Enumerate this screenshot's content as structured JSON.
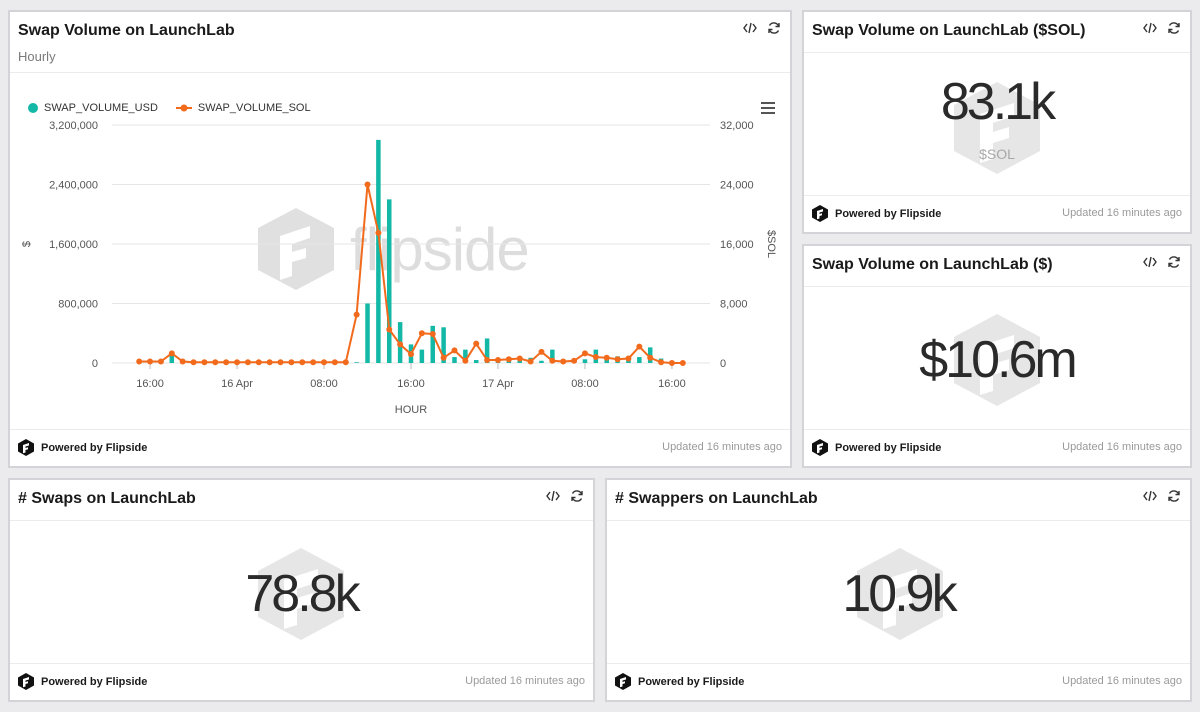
{
  "cards": {
    "main": {
      "title": "Swap Volume on LaunchLab",
      "subtitle": "Hourly",
      "footer_brand": "Powered by Flipside",
      "footer_updated": "Updated 16 minutes ago",
      "watermark": "flipside"
    },
    "sol": {
      "title": "Swap Volume on LaunchLab ($SOL)",
      "value": "83.1k",
      "unit": "$SOL",
      "footer_brand": "Powered by Flipside",
      "footer_updated": "Updated 16 minutes ago"
    },
    "usd": {
      "title": "Swap Volume on LaunchLab ($)",
      "value": "$10.6m",
      "footer_brand": "Powered by Flipside",
      "footer_updated": "Updated 16 minutes ago"
    },
    "swaps": {
      "title": "# Swaps on LaunchLab",
      "value": "78.8k",
      "footer_brand": "Powered by Flipside",
      "footer_updated": "Updated 16 minutes ago"
    },
    "swappers": {
      "title": "# Swappers on LaunchLab",
      "value": "10.9k",
      "footer_brand": "Powered by Flipside",
      "footer_updated": "Updated 16 minutes ago"
    }
  },
  "icons": {
    "embed": "code-icon",
    "refresh": "refresh-icon",
    "menu": "hamburger-menu-icon",
    "brand": "flipside-logo-icon"
  },
  "colors": {
    "usd_series": "#14b8a6",
    "sol_series": "#f26b1d",
    "grid": "#e6e6e6",
    "axis_text": "#555555"
  },
  "chart_data": {
    "type": "bar",
    "title": "Swap Volume on LaunchLab",
    "subtitle": "Hourly",
    "xlabel": "HOUR",
    "ylabel_left": "$",
    "ylabel_right": "$SOL",
    "x_ticks": [
      "16:00",
      "16 Apr",
      "08:00",
      "16:00",
      "17 Apr",
      "08:00",
      "16:00"
    ],
    "x_tick_hours": [
      0,
      8,
      16,
      24,
      32,
      40,
      48
    ],
    "y_left_ticks": [
      "0",
      "800,000",
      "1,600,000",
      "2,400,000",
      "3,200,000"
    ],
    "y_right_ticks": [
      "0",
      "8,000",
      "16,000",
      "24,000",
      "32,000"
    ],
    "ylim_left": [
      0,
      3200000
    ],
    "ylim_right": [
      0,
      32000
    ],
    "legend_position": "top-left",
    "grid": true,
    "x_hours": [
      -1,
      0,
      1,
      2,
      3,
      4,
      5,
      6,
      7,
      8,
      9,
      10,
      11,
      12,
      13,
      14,
      15,
      16,
      17,
      18,
      19,
      20,
      21,
      22,
      23,
      24,
      25,
      26,
      27,
      28,
      29,
      30,
      31,
      32,
      33,
      34,
      35,
      36,
      37,
      38,
      39,
      40,
      41,
      42,
      43,
      44,
      45,
      46,
      47,
      48,
      49
    ],
    "series": [
      {
        "name": "SWAP_VOLUME_USD",
        "kind": "bar",
        "axis": "left",
        "values": [
          30000,
          10000,
          20000,
          140000,
          20000,
          10000,
          10000,
          10000,
          10000,
          10000,
          10000,
          10000,
          10000,
          10000,
          10000,
          10000,
          10000,
          10000,
          10000,
          10000,
          10000,
          800000,
          3000000,
          2200000,
          550000,
          250000,
          180000,
          500000,
          480000,
          80000,
          180000,
          40000,
          330000,
          60000,
          50000,
          60000,
          70000,
          30000,
          180000,
          50000,
          40000,
          50000,
          180000,
          90000,
          90000,
          70000,
          80000,
          210000,
          60000,
          10000,
          0
        ]
      },
      {
        "name": "SWAP_VOLUME_SOL",
        "kind": "line",
        "axis": "right",
        "values": [
          200,
          200,
          200,
          1300,
          200,
          100,
          100,
          100,
          100,
          100,
          100,
          100,
          100,
          100,
          100,
          100,
          100,
          100,
          100,
          100,
          6500,
          24000,
          17500,
          4500,
          2500,
          1200,
          4000,
          3900,
          700,
          1700,
          300,
          2600,
          400,
          400,
          500,
          600,
          200,
          1500,
          300,
          200,
          300,
          1300,
          800,
          700,
          500,
          600,
          2200,
          700,
          100,
          0,
          0
        ]
      }
    ]
  }
}
